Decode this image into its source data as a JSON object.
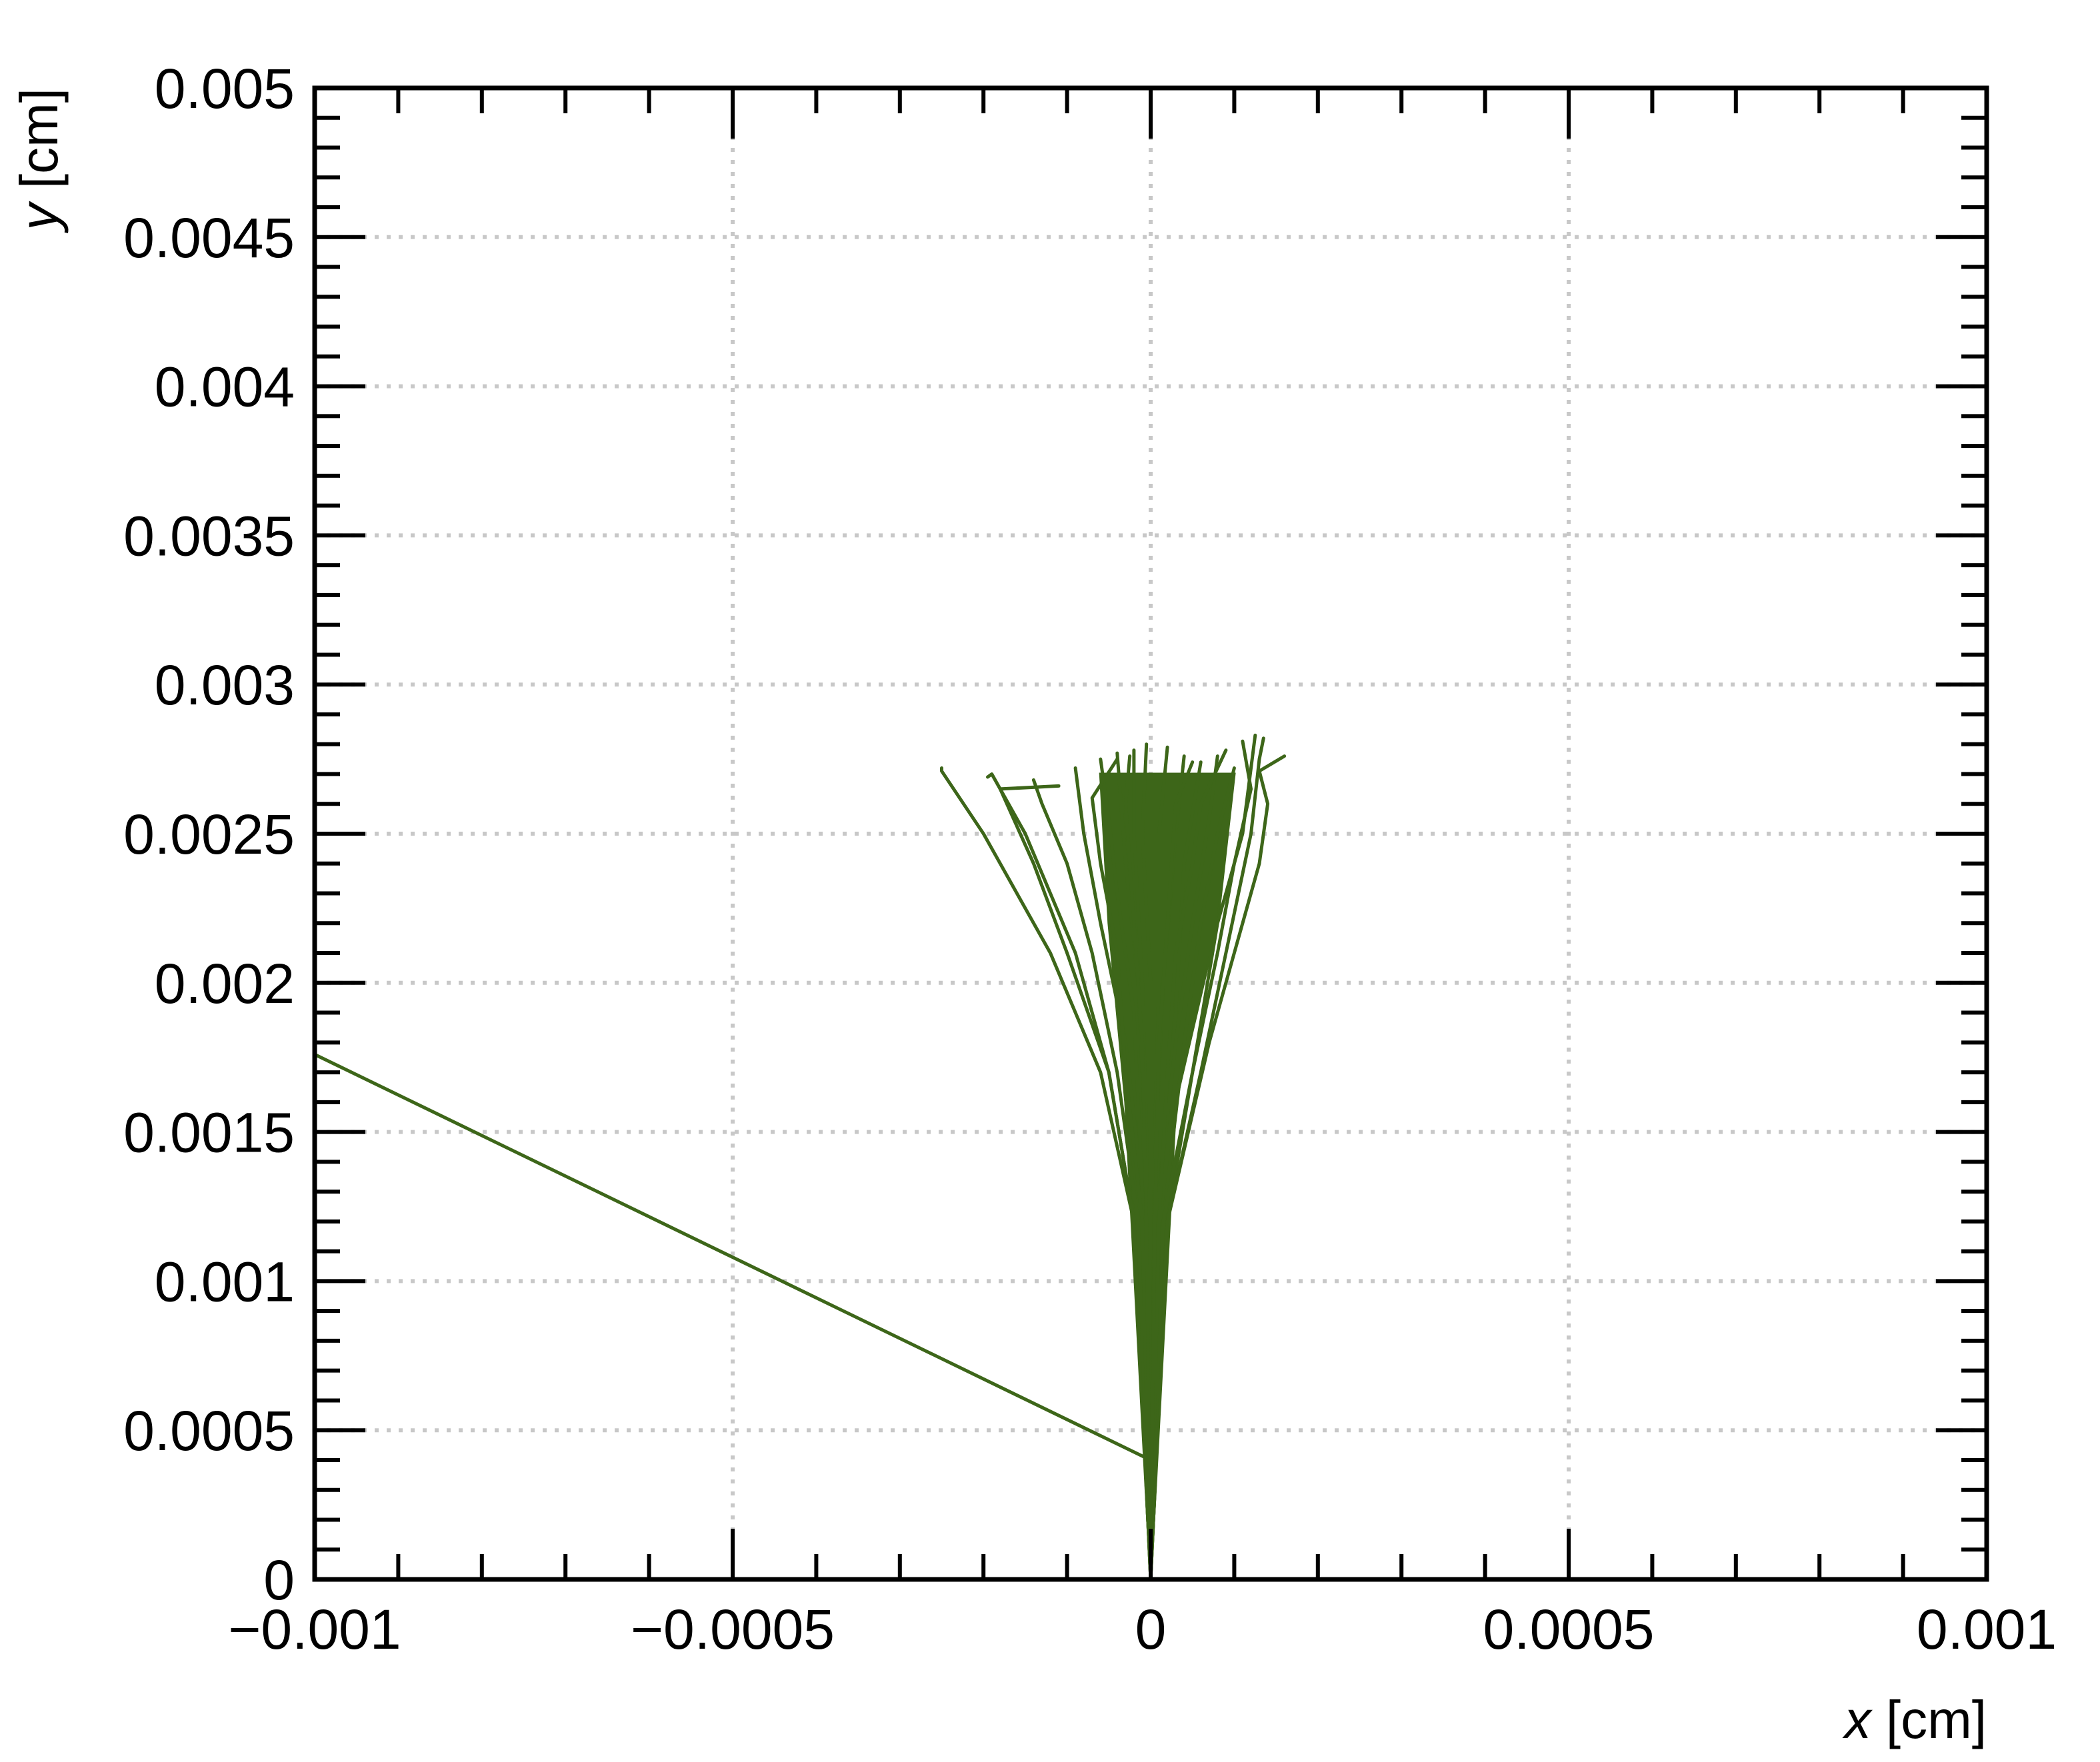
{
  "chart_data": {
    "type": "line",
    "xlabel_var": "x",
    "xlabel_unit": " [cm]",
    "ylabel_var": "y",
    "ylabel_unit": " [cm]",
    "xlim": [
      -0.001,
      0.001
    ],
    "ylim": [
      0,
      0.005
    ],
    "grid": true,
    "series_color": "#3d6619",
    "x_ticks": [
      {
        "value": -0.001,
        "label": "−0.001"
      },
      {
        "value": -0.0005,
        "label": "−0.0005"
      },
      {
        "value": 0,
        "label": "0"
      },
      {
        "value": 0.0005,
        "label": "0.0005"
      },
      {
        "value": 0.001,
        "label": "0.001"
      }
    ],
    "y_ticks": [
      {
        "value": 0,
        "label": "0"
      },
      {
        "value": 0.0005,
        "label": "0.0005"
      },
      {
        "value": 0.001,
        "label": "0.001"
      },
      {
        "value": 0.0015,
        "label": "0.0015"
      },
      {
        "value": 0.002,
        "label": "0.002"
      },
      {
        "value": 0.0025,
        "label": "0.0025"
      },
      {
        "value": 0.003,
        "label": "0.003"
      },
      {
        "value": 0.0035,
        "label": "0.0035"
      },
      {
        "value": 0.004,
        "label": "0.004"
      },
      {
        "value": 0.0045,
        "label": "0.0045"
      },
      {
        "value": 0.005,
        "label": "0.005"
      }
    ],
    "tracks": [
      [
        [
          0,
          0
        ],
        [
          0,
          0.0004
        ],
        [
          -0.001,
          0.00176
        ]
      ],
      [
        [
          0,
          0
        ],
        [
          -2e-05,
          0.0012
        ],
        [
          -6e-05,
          0.0017
        ],
        [
          -0.00012,
          0.0021
        ],
        [
          -0.0002,
          0.0025
        ],
        [
          -0.00025,
          0.00271
        ],
        [
          -0.00025,
          0.00272
        ]
      ],
      [
        [
          0,
          0
        ],
        [
          -2e-05,
          0.0012
        ],
        [
          -5e-05,
          0.0017
        ],
        [
          -0.0001,
          0.0021
        ],
        [
          -0.00014,
          0.0024
        ],
        [
          -0.00018,
          0.00265
        ],
        [
          -0.00011,
          0.00266
        ]
      ],
      [
        [
          0,
          0
        ],
        [
          -2e-05,
          0.0012
        ],
        [
          -5e-05,
          0.0017
        ],
        [
          -9e-05,
          0.0021
        ],
        [
          -0.00015,
          0.0025
        ],
        [
          -0.00019,
          0.0027
        ],
        [
          -0.000195,
          0.00269
        ]
      ],
      [
        [
          0,
          0
        ],
        [
          -1.5e-05,
          0.0012
        ],
        [
          -4e-05,
          0.0017
        ],
        [
          -7e-05,
          0.0021
        ],
        [
          -0.0001,
          0.0024
        ],
        [
          -0.00013,
          0.0026
        ],
        [
          -0.00014,
          0.00268
        ]
      ],
      [
        [
          0,
          0
        ],
        [
          -1e-05,
          0.0013
        ],
        [
          -3e-05,
          0.0018
        ],
        [
          -6e-05,
          0.0022
        ],
        [
          -8e-05,
          0.0025
        ],
        [
          -9e-05,
          0.00272
        ]
      ],
      [
        [
          0,
          0
        ],
        [
          -1e-05,
          0.0013
        ],
        [
          -2e-05,
          0.0019
        ],
        [
          -4e-05,
          0.0023
        ],
        [
          -5e-05,
          0.00255
        ],
        [
          -6e-05,
          0.00275
        ]
      ],
      [
        [
          0,
          0
        ],
        [
          -5e-06,
          0.0014
        ],
        [
          -1.5e-05,
          0.002
        ],
        [
          -3e-05,
          0.0024
        ],
        [
          -4e-05,
          0.00277
        ]
      ],
      [
        [
          0,
          0
        ],
        [
          -5e-06,
          0.0015
        ],
        [
          -1e-05,
          0.002
        ],
        [
          -2e-05,
          0.0025
        ],
        [
          -2e-05,
          0.00278
        ]
      ],
      [
        [
          0,
          0
        ],
        [
          0,
          0.0015
        ],
        [
          0,
          0.002
        ],
        [
          -1e-05,
          0.0025
        ],
        [
          -5e-06,
          0.0028
        ]
      ],
      [
        [
          0,
          0
        ],
        [
          5e-06,
          0.0015
        ],
        [
          1e-05,
          0.002
        ],
        [
          1e-05,
          0.0025
        ],
        [
          2e-05,
          0.00279
        ]
      ],
      [
        [
          0,
          0
        ],
        [
          5e-06,
          0.0014
        ],
        [
          1.5e-05,
          0.002
        ],
        [
          3e-05,
          0.0025
        ],
        [
          4e-05,
          0.00276
        ]
      ],
      [
        [
          0,
          0
        ],
        [
          1e-05,
          0.0013
        ],
        [
          3e-05,
          0.0019
        ],
        [
          4e-05,
          0.0024
        ],
        [
          6e-05,
          0.00274
        ]
      ],
      [
        [
          0,
          0
        ],
        [
          1e-05,
          0.0013
        ],
        [
          3e-05,
          0.0018
        ],
        [
          5e-05,
          0.0022
        ],
        [
          7e-05,
          0.00255
        ],
        [
          8e-05,
          0.00276
        ]
      ],
      [
        [
          0,
          0
        ],
        [
          1.5e-05,
          0.0012
        ],
        [
          4e-05,
          0.0018
        ],
        [
          6e-05,
          0.0022
        ],
        [
          8e-05,
          0.0025
        ],
        [
          0.0001,
          0.00272
        ]
      ],
      [
        [
          0,
          0
        ],
        [
          2e-05,
          0.0012
        ],
        [
          5e-05,
          0.0017
        ],
        [
          8e-05,
          0.0021
        ],
        [
          0.0001,
          0.0024
        ],
        [
          0.00012,
          0.00265
        ],
        [
          0.00011,
          0.00281
        ]
      ],
      [
        [
          0,
          0
        ],
        [
          2e-05,
          0.0012
        ],
        [
          6e-05,
          0.0017
        ],
        [
          9e-05,
          0.0021
        ],
        [
          0.00012,
          0.0025
        ],
        [
          0.00013,
          0.00275
        ],
        [
          0.000135,
          0.00282
        ]
      ],
      [
        [
          0,
          0
        ],
        [
          2e-05,
          0.0012
        ],
        [
          7e-05,
          0.0018
        ],
        [
          0.0001,
          0.0021
        ],
        [
          0.00013,
          0.0024
        ],
        [
          0.00014,
          0.0026
        ],
        [
          0.00013,
          0.00271
        ],
        [
          0.00016,
          0.00276
        ]
      ],
      [
        [
          0,
          0
        ],
        [
          1.5e-05,
          0.0012
        ],
        [
          5e-05,
          0.0017
        ],
        [
          8e-05,
          0.0022
        ],
        [
          0.00011,
          0.0025
        ],
        [
          0.00012,
          0.00272
        ],
        [
          0.000125,
          0.00283
        ]
      ],
      [
        [
          0,
          0
        ],
        [
          -1e-05,
          0.0012
        ],
        [
          -3e-05,
          0.0017
        ],
        [
          -4e-05,
          0.0021
        ],
        [
          -6e-05,
          0.0024
        ],
        [
          -7e-05,
          0.00262
        ],
        [
          -4e-05,
          0.00275
        ]
      ],
      [
        [
          0,
          0
        ],
        [
          1e-05,
          0.0012
        ],
        [
          2e-05,
          0.0017
        ],
        [
          3e-05,
          0.0021
        ],
        [
          5e-05,
          0.0024
        ],
        [
          6e-05,
          0.0026
        ],
        [
          9e-05,
          0.00278
        ]
      ],
      [
        [
          0,
          0
        ],
        [
          -5e-06,
          0.0012
        ],
        [
          -1e-05,
          0.0018
        ],
        [
          -2e-05,
          0.0022
        ],
        [
          -3e-05,
          0.0026
        ],
        [
          -2.5e-05,
          0.00276
        ]
      ],
      [
        [
          0,
          0
        ],
        [
          5e-06,
          0.0012
        ],
        [
          1e-05,
          0.0018
        ],
        [
          2e-05,
          0.0022
        ],
        [
          3e-05,
          0.0026
        ],
        [
          5e-05,
          0.00274
        ]
      ]
    ]
  }
}
